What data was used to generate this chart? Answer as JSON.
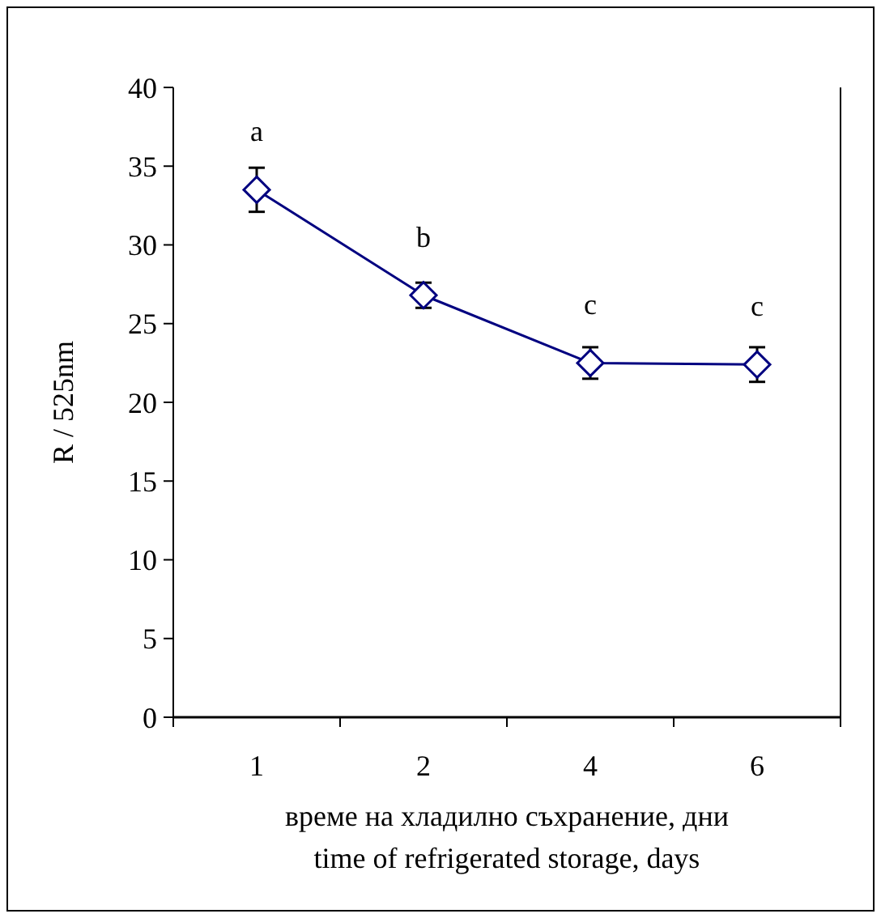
{
  "chart_data": {
    "type": "line",
    "xlabel": "време на хладилно съхранение, дни\ntime of refrigerated storage, days",
    "ylabel": "R / 525nm",
    "categories": [
      "1",
      "2",
      "4",
      "6"
    ],
    "series": [
      {
        "color": "#000080",
        "values": [
          33.5,
          26.8,
          22.5,
          22.4
        ],
        "errors": [
          1.4,
          0.8,
          1.0,
          1.1
        ]
      }
    ],
    "ylim": [
      0,
      40
    ],
    "yticks": [
      0,
      5,
      10,
      15,
      20,
      25,
      30,
      35,
      40
    ],
    "grid": false,
    "marker": "diamond",
    "line_style": "solid",
    "annotations": [
      {
        "text": "a",
        "x": "1",
        "y": 33.5
      },
      {
        "text": "b",
        "x": "2",
        "y": 26.8
      },
      {
        "text": "c",
        "x": "4",
        "y": 22.5
      },
      {
        "text": "c",
        "x": "6",
        "y": 22.4
      }
    ]
  }
}
